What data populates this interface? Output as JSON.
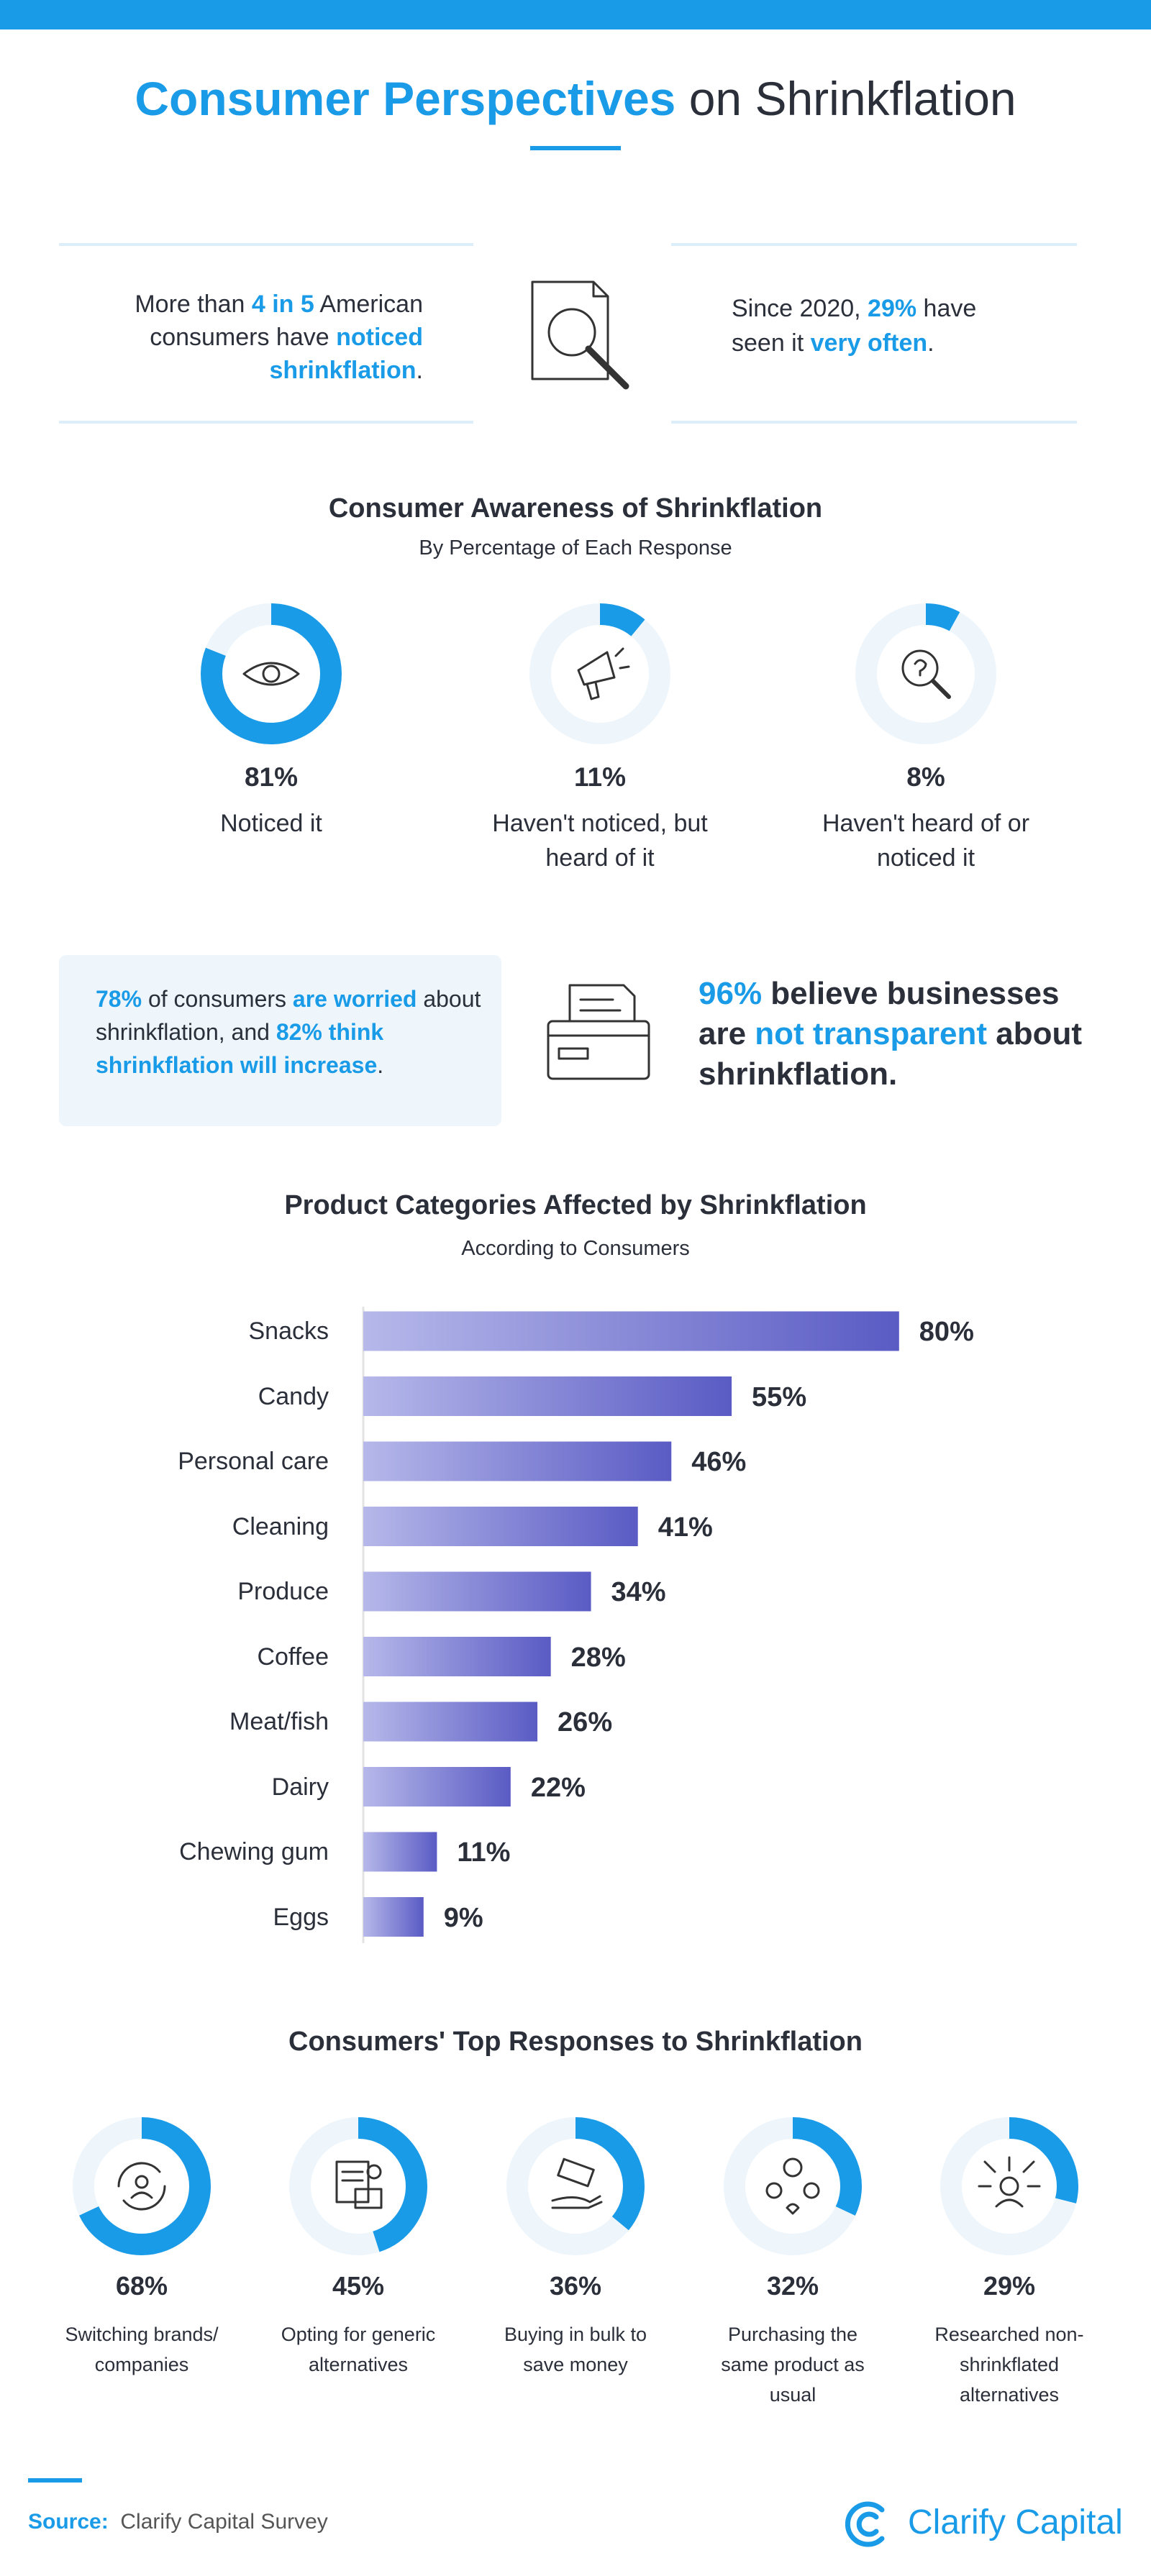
{
  "header": {
    "title_parts": [
      {
        "text": "Consumer Perspectives",
        "highlight": true
      },
      {
        "text": " on Shrinkflation"
      }
    ]
  },
  "stats": [
    {
      "parts": [
        {
          "text": "More than "
        },
        {
          "text": "4 in 5",
          "highlight": true
        },
        {
          "text": " American consumers have "
        },
        {
          "text": "noticed shrinkflation",
          "highlight": true
        },
        {
          "text": "."
        }
      ]
    },
    {
      "parts": [
        {
          "text": "Since 2020, "
        },
        {
          "text": "29%",
          "highlight": true
        },
        {
          "text": " have seen it "
        },
        {
          "text": "very often",
          "highlight": true
        },
        {
          "text": "."
        }
      ]
    }
  ],
  "callouts": {
    "box": {
      "parts": [
        {
          "text": "78%",
          "highlight": true
        },
        {
          "text": " of consumers "
        },
        {
          "text": "are worried",
          "highlight": true
        },
        {
          "text": " about shrinkflation, and "
        },
        {
          "text": "82% think shrinkflation will increase",
          "highlight": true
        },
        {
          "text": "."
        }
      ]
    },
    "big": {
      "parts": [
        {
          "text": "96%",
          "highlight": true
        },
        {
          "text": " believe businesses are "
        },
        {
          "text": "not transparent",
          "highlight": true
        },
        {
          "text": " about shrinkflation."
        }
      ]
    }
  },
  "chart_data": [
    {
      "type": "donut",
      "title": "Consumer Awareness of Shrinkflation",
      "subtitle": "By Percentage of Each Response",
      "categories": [
        "Noticed it",
        "Haven't noticed, but heard of it",
        "Haven't heard of or noticed it"
      ],
      "values": [
        81,
        11,
        8
      ],
      "value_labels": [
        "81%",
        "11%",
        "8%"
      ],
      "color": "#1a9be8"
    },
    {
      "type": "bar",
      "orientation": "horizontal",
      "title": "Product Categories Affected by Shrinkflation",
      "subtitle": "According to Consumers",
      "categories": [
        "Snacks",
        "Candy",
        "Personal care",
        "Cleaning",
        "Produce",
        "Coffee",
        "Meat/fish",
        "Dairy",
        "Chewing gum",
        "Eggs"
      ],
      "values": [
        80,
        55,
        46,
        41,
        34,
        28,
        26,
        22,
        11,
        9
      ],
      "value_labels": [
        "80%",
        "55%",
        "46%",
        "41%",
        "34%",
        "28%",
        "26%",
        "22%",
        "11%",
        "9%"
      ],
      "color": "#5a5bc4"
    },
    {
      "type": "donut",
      "title": "Consumers' Top Responses to Shrinkflation",
      "categories": [
        "Switching brands/ companies",
        "Opting for generic alternatives",
        "Buying in bulk to save money",
        "Purchasing the same product as usual",
        "Researched non-shrinkflated alternatives"
      ],
      "values": [
        68,
        45,
        36,
        32,
        29
      ],
      "value_labels": [
        "68%",
        "45%",
        "36%",
        "32%",
        "29%"
      ],
      "color": "#1a9be8"
    }
  ],
  "footer": {
    "source_label": "Source:",
    "source": "Clarify Capital Survey",
    "brand": "Clarify Capital"
  }
}
